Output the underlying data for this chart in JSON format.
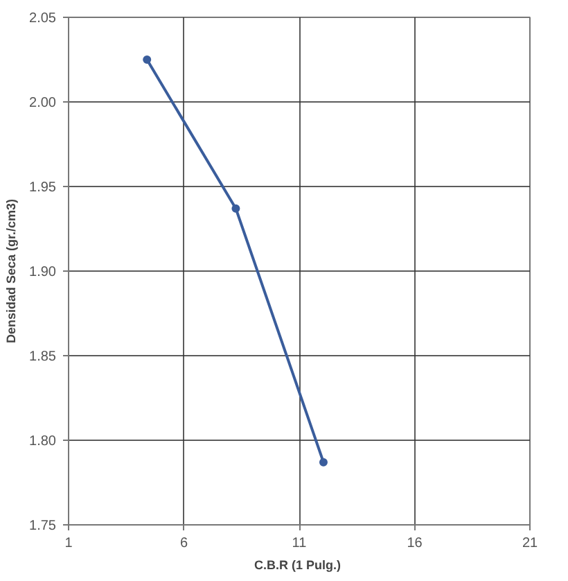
{
  "chart_data": {
    "type": "line",
    "xlabel": "C.B.R  (1 Pulg.)",
    "ylabel": "Densidad Seca (gr./cm3)",
    "x": [
      4.4,
      8.25,
      12.05
    ],
    "series": [
      {
        "color": "#3a5d9c",
        "values": [
          2.025,
          1.937,
          1.787
        ]
      }
    ],
    "xlim": [
      1,
      21
    ],
    "xticks": [
      1,
      6,
      11,
      16,
      21
    ],
    "ylim": [
      1.75,
      2.05
    ],
    "yticks": [
      {
        "value": 1.75,
        "label": "1.75"
      },
      {
        "value": 1.8,
        "label": "1.80"
      },
      {
        "value": 1.85,
        "label": "1.85"
      },
      {
        "value": 1.9,
        "label": "1.90"
      },
      {
        "value": 1.95,
        "label": "1.95"
      },
      {
        "value": 2.0,
        "label": "2.00"
      },
      {
        "value": 2.05,
        "label": "2.05"
      }
    ],
    "grid": true,
    "marker": "circle",
    "line_style": "solid"
  }
}
